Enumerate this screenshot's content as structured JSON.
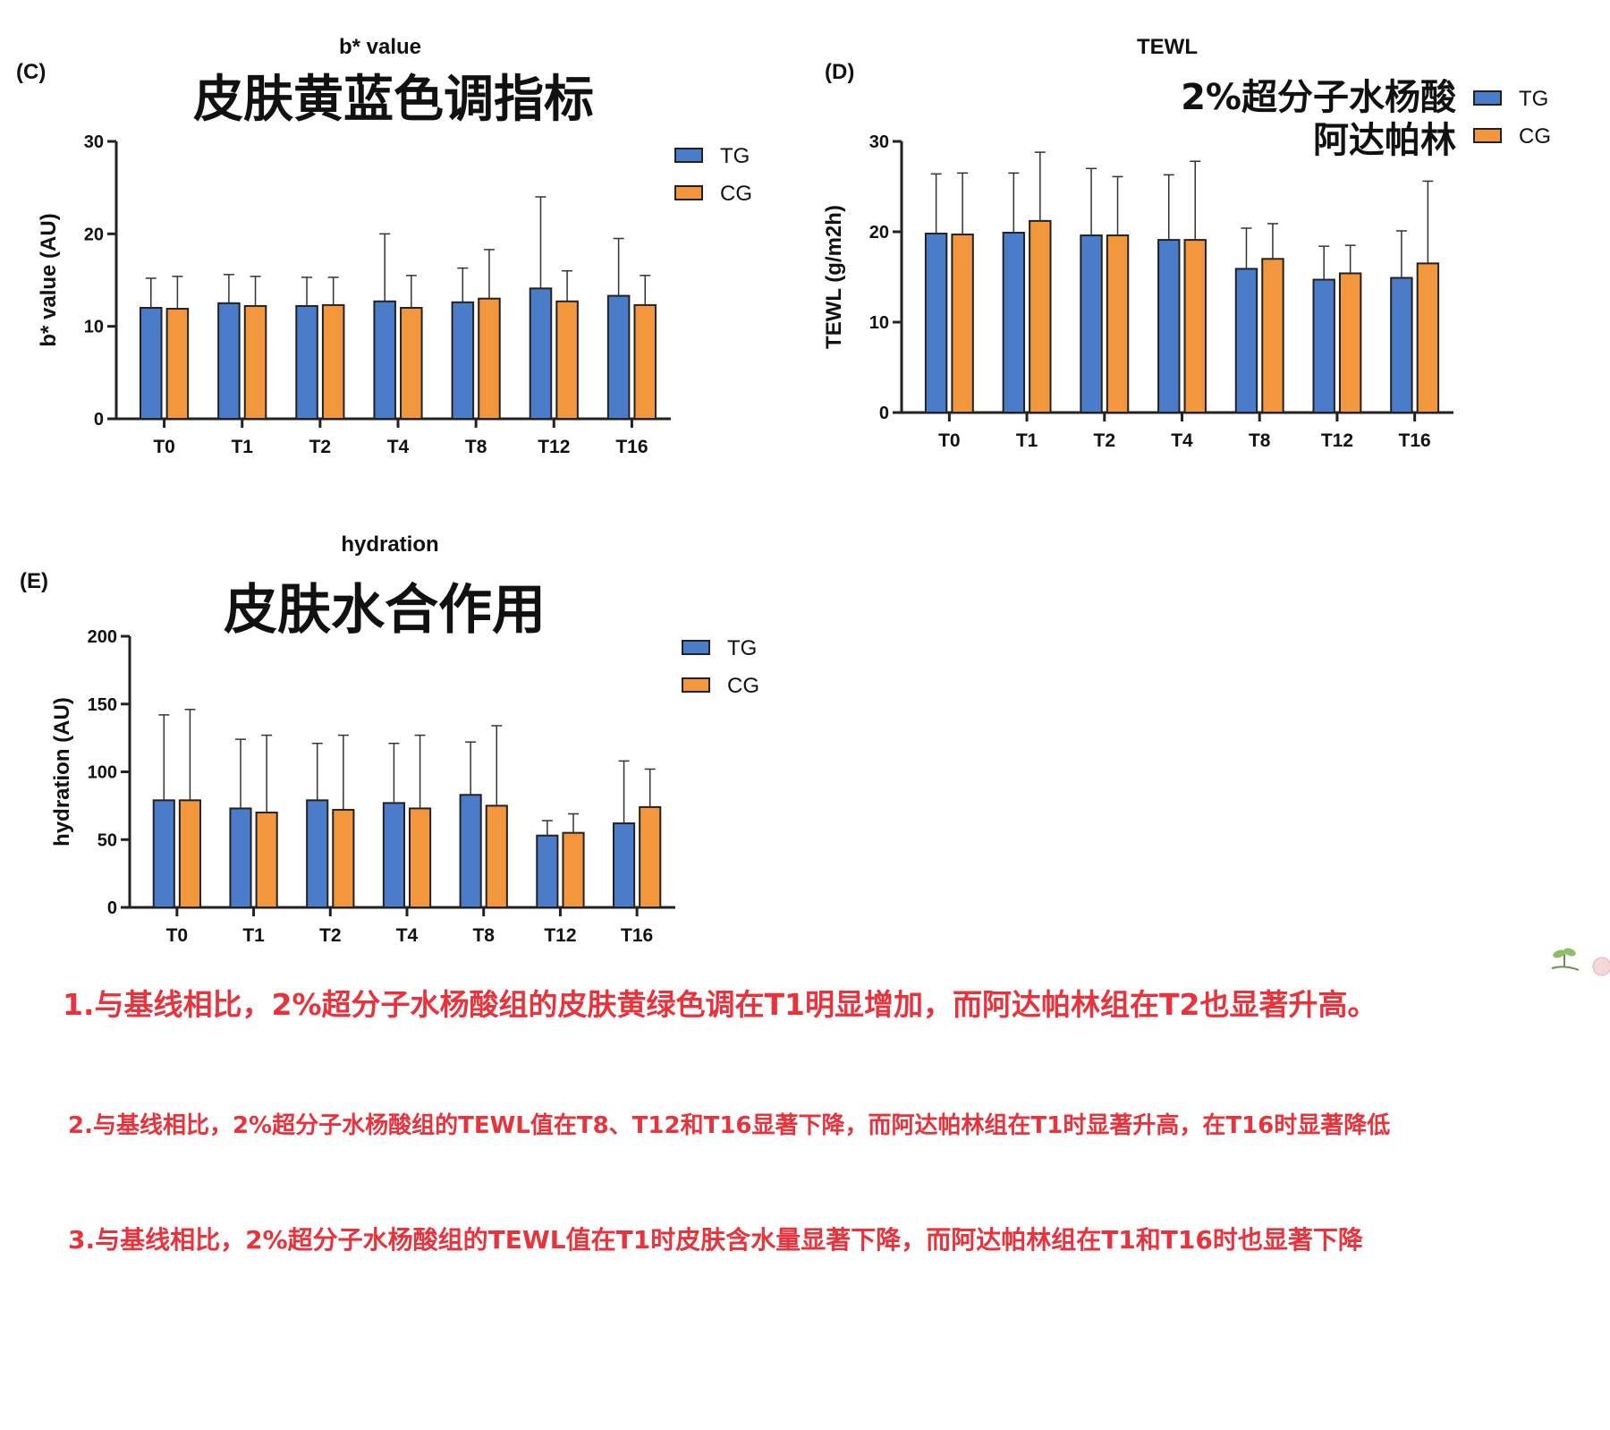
{
  "colors": {
    "tg": "#4a7cc9",
    "cg": "#f3973e",
    "axis": "#222222",
    "note": "#e8333c"
  },
  "panels": [
    {
      "label": "(C)",
      "overlay": [
        "皮肤黄蓝色调指标"
      ],
      "chart_data": {
        "type": "bar",
        "title": "b* value",
        "ylabel": "b* value (AU)",
        "xlabel": "",
        "categories": [
          "T0",
          "T1",
          "T2",
          "T4",
          "T8",
          "T12",
          "T16"
        ],
        "ylim": [
          0,
          30
        ],
        "yticks": [
          0,
          10,
          20,
          30
        ],
        "series": [
          {
            "name": "TG",
            "values": [
              12.0,
              12.5,
              12.2,
              12.7,
              12.6,
              14.1,
              13.3
            ],
            "errors": [
              3.2,
              3.1,
              3.1,
              7.3,
              3.7,
              9.9,
              6.2
            ]
          },
          {
            "name": "CG",
            "values": [
              11.9,
              12.2,
              12.3,
              12.0,
              13.0,
              12.7,
              12.3
            ],
            "errors": [
              3.5,
              3.2,
              3.0,
              3.5,
              5.3,
              3.3,
              3.2
            ]
          }
        ],
        "legend": "top-right"
      }
    },
    {
      "label": "(D)",
      "overlay": [
        "2%超分子水杨酸",
        "阿达帕林"
      ],
      "chart_data": {
        "type": "bar",
        "title": "TEWL",
        "ylabel": "TEWL (g/m2h)",
        "xlabel": "",
        "categories": [
          "T0",
          "T1",
          "T2",
          "T4",
          "T8",
          "T12",
          "T16"
        ],
        "ylim": [
          0,
          30
        ],
        "yticks": [
          0,
          10,
          20,
          30
        ],
        "series": [
          {
            "name": "TG",
            "values": [
              19.8,
              19.9,
              19.6,
              19.1,
              15.9,
              14.7,
              14.9
            ],
            "errors": [
              6.6,
              6.6,
              7.4,
              7.2,
              4.5,
              3.7,
              5.2
            ]
          },
          {
            "name": "CG",
            "values": [
              19.7,
              21.2,
              19.6,
              19.1,
              17.0,
              15.4,
              16.5
            ],
            "errors": [
              6.8,
              7.6,
              6.5,
              8.7,
              3.9,
              3.1,
              9.1
            ]
          }
        ],
        "legend": "top-right"
      }
    },
    {
      "label": "(E)",
      "overlay": [
        "皮肤水合作用"
      ],
      "chart_data": {
        "type": "bar",
        "title": "hydration",
        "ylabel": "hydration (AU)",
        "xlabel": "",
        "categories": [
          "T0",
          "T1",
          "T2",
          "T4",
          "T8",
          "T12",
          "T16"
        ],
        "ylim": [
          0,
          200
        ],
        "yticks": [
          0,
          50,
          100,
          150,
          200
        ],
        "series": [
          {
            "name": "TG",
            "values": [
              79,
              73,
              79,
              77,
              83,
              53,
              62
            ],
            "errors": [
              63,
              51,
              42,
              44,
              39,
              11,
              46
            ]
          },
          {
            "name": "CG",
            "values": [
              79,
              70,
              72,
              73,
              75,
              55,
              74
            ],
            "errors": [
              67,
              57,
              55,
              54,
              59,
              14,
              28
            ]
          }
        ],
        "legend": "top-right"
      }
    }
  ],
  "notes": [
    "1.与基线相比，2%超分子水杨酸组的皮肤黄绿色调在T1明显增加，而阿达帕林组在T2也显著升高。",
    "2.与基线相比，2%超分子水杨酸组的TEWL值在T8、T12和T16显著下降，而阿达帕林组在T1时显著升高，在T16时显著降低",
    "3.与基线相比，2%超分子水杨酸组的TEWL值在T1时皮肤含水量显著下降，而阿达帕林组在T1和T16时也显著下降"
  ],
  "decoration_icon": "sprout-icon"
}
